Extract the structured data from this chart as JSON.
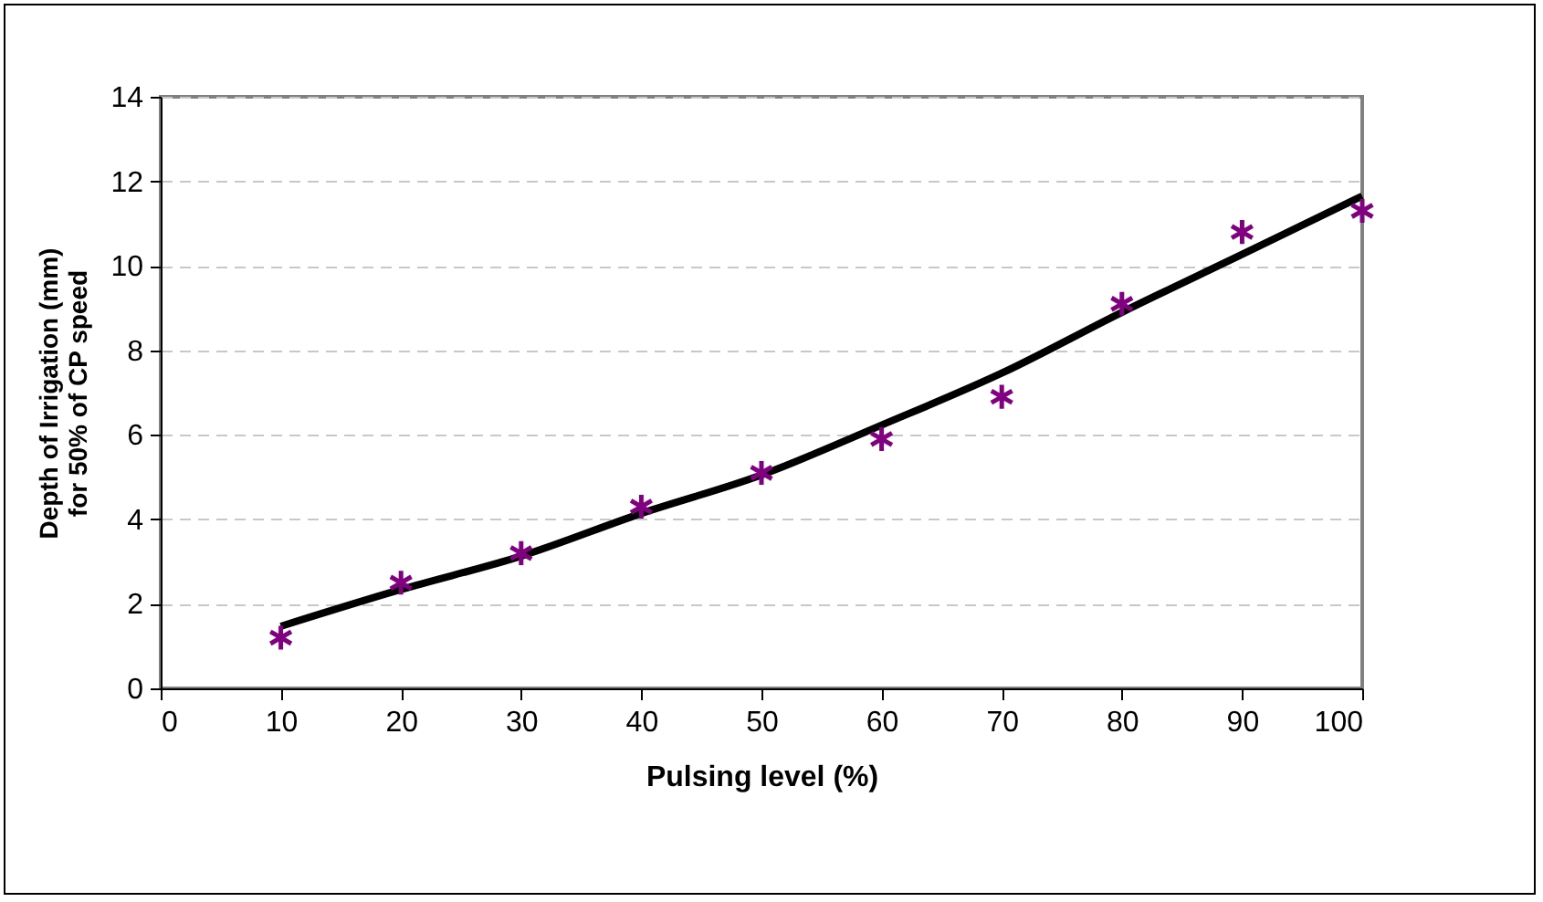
{
  "chart_data": {
    "type": "scatter",
    "xlabel": "Pulsing level (%)",
    "ylabel": "Depth of Irrigation (mm)\nfor 50% of CP speed",
    "x": [
      10,
      20,
      30,
      40,
      50,
      60,
      70,
      80,
      90,
      100
    ],
    "series": [
      {
        "type": "scatter",
        "color": "#800080",
        "marker": "cross",
        "values": [
          1.2,
          2.5,
          3.2,
          4.3,
          5.1,
          5.9,
          6.9,
          9.1,
          10.8,
          11.3
        ]
      },
      {
        "type": "line",
        "color": "#000000",
        "marker": "none",
        "values": [
          1.47,
          2.34,
          3.13,
          4.14,
          5.05,
          6.23,
          7.46,
          8.9,
          10.27,
          11.65
        ]
      }
    ],
    "xlim": [
      0,
      100
    ],
    "xticks": [
      0,
      10,
      20,
      30,
      40,
      50,
      60,
      70,
      80,
      90,
      100
    ],
    "ylim": [
      0,
      14
    ],
    "yticks": [
      0,
      2,
      4,
      6,
      8,
      10,
      12,
      14
    ],
    "grid": "y"
  }
}
